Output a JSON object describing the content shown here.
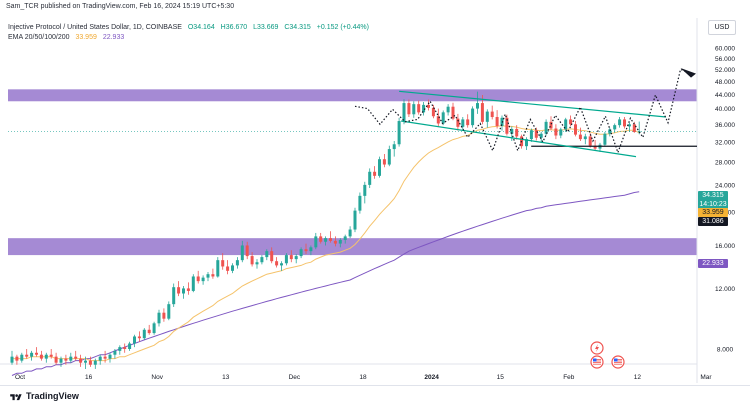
{
  "header": {
    "publisher": "Sam_TCR published on TradingView.com, Feb 16, 2024 15:19 UTC+5:30",
    "symbol_line": [
      "Injective Protocol / United States Dollar, 1D, COINBASE",
      "O34.164",
      "H36.670",
      "L33.669",
      "C34.315",
      "+0.152 (+0.44%)"
    ],
    "ema_line": [
      "EMA 20/50/100/200",
      "33.959",
      "22.933"
    ]
  },
  "currency": "USD",
  "footer": {
    "brand": "TradingView",
    "logo_icon": "tradingview-logo-icon"
  },
  "colors": {
    "up": "#26a69a",
    "down": "#ef5350",
    "ema20": "#f5c36b",
    "ema200": "#7e57c2",
    "zone": "#9575cd",
    "channel": "#00a98f",
    "tag_price": "#26a69a",
    "tag_ema20": "#f5b335",
    "tag_ema200": "#7e57c2"
  },
  "event_icons": [
    "lightning-icon",
    "us-flag-icon",
    "us-flag-icon"
  ],
  "chart_data": {
    "type": "candlestick",
    "x_tick_labels": [
      "Oct",
      "16",
      "Nov",
      "13",
      "Dec",
      "18",
      "2024",
      "15",
      "Feb",
      "12",
      "Mar"
    ],
    "y_tick_labels": [
      "60.000",
      "56.000",
      "52.000",
      "48.000",
      "44.000",
      "40.000",
      "36.000",
      "32.000",
      "28.000",
      "24.000",
      "20.000",
      "16.000",
      "12.000",
      "8.000"
    ],
    "y_scale": "log",
    "ylim": [
      6.5,
      64
    ],
    "price_labels": {
      "last": "34.315",
      "countdown": "14:10:23",
      "support": "31.086",
      "ema20": "33.959",
      "ema200": "22.933"
    },
    "candles": [
      [
        7.3,
        7.9,
        7.2,
        7.6
      ],
      [
        7.6,
        7.7,
        7.2,
        7.4
      ],
      [
        7.4,
        7.8,
        7.3,
        7.7
      ],
      [
        7.7,
        8.0,
        7.5,
        7.6
      ],
      [
        7.6,
        7.9,
        7.4,
        7.8
      ],
      [
        7.8,
        8.1,
        7.6,
        7.7
      ],
      [
        7.7,
        7.9,
        7.4,
        7.5
      ],
      [
        7.5,
        7.8,
        7.3,
        7.7
      ],
      [
        7.7,
        8.0,
        7.5,
        7.6
      ],
      [
        7.6,
        7.8,
        7.2,
        7.3
      ],
      [
        7.3,
        7.6,
        7.1,
        7.5
      ],
      [
        7.5,
        7.7,
        7.2,
        7.4
      ],
      [
        7.4,
        7.8,
        7.3,
        7.6
      ],
      [
        7.6,
        7.9,
        7.4,
        7.5
      ],
      [
        7.5,
        7.7,
        7.1,
        7.3
      ],
      [
        7.3,
        7.6,
        7.0,
        7.4
      ],
      [
        7.4,
        7.6,
        7.1,
        7.2
      ],
      [
        7.2,
        7.5,
        7.0,
        7.4
      ],
      [
        7.4,
        7.7,
        7.2,
        7.6
      ],
      [
        7.6,
        7.9,
        7.3,
        7.5
      ],
      [
        7.5,
        7.8,
        7.3,
        7.7
      ],
      [
        7.7,
        8.0,
        7.5,
        7.9
      ],
      [
        7.9,
        8.2,
        7.7,
        8.1
      ],
      [
        8.1,
        8.3,
        7.8,
        8.0
      ],
      [
        8.0,
        8.4,
        7.9,
        8.3
      ],
      [
        8.3,
        8.8,
        8.1,
        8.7
      ],
      [
        8.7,
        9.0,
        8.4,
        8.6
      ],
      [
        8.6,
        9.2,
        8.5,
        9.1
      ],
      [
        9.1,
        9.4,
        8.8,
        8.9
      ],
      [
        8.9,
        9.6,
        8.8,
        9.5
      ],
      [
        9.5,
        10.4,
        9.3,
        10.2
      ],
      [
        10.2,
        10.5,
        9.6,
        9.8
      ],
      [
        9.8,
        11.0,
        9.7,
        10.8
      ],
      [
        10.8,
        12.4,
        10.6,
        12.1
      ],
      [
        12.1,
        12.6,
        11.4,
        11.6
      ],
      [
        11.6,
        12.2,
        11.2,
        12.0
      ],
      [
        12.0,
        12.5,
        11.5,
        11.8
      ],
      [
        11.8,
        13.2,
        11.7,
        13.0
      ],
      [
        13.0,
        13.5,
        12.4,
        12.6
      ],
      [
        12.6,
        13.1,
        12.3,
        12.9
      ],
      [
        12.9,
        13.4,
        12.6,
        13.2
      ],
      [
        13.2,
        13.7,
        12.8,
        13.0
      ],
      [
        13.0,
        14.8,
        12.9,
        14.5
      ],
      [
        14.5,
        15.2,
        13.6,
        13.9
      ],
      [
        13.9,
        14.5,
        13.2,
        13.5
      ],
      [
        13.5,
        14.2,
        13.3,
        14.0
      ],
      [
        14.0,
        14.8,
        13.7,
        14.5
      ],
      [
        14.5,
        16.5,
        14.3,
        16.0
      ],
      [
        16.0,
        16.4,
        14.6,
        14.9
      ],
      [
        14.9,
        15.3,
        13.9,
        14.1
      ],
      [
        14.1,
        14.6,
        13.7,
        14.3
      ],
      [
        14.3,
        15.0,
        14.1,
        14.8
      ],
      [
        14.8,
        15.6,
        14.5,
        15.4
      ],
      [
        15.4,
        15.8,
        14.2,
        14.4
      ],
      [
        14.4,
        14.8,
        13.8,
        14.0
      ],
      [
        14.0,
        14.4,
        13.5,
        14.2
      ],
      [
        14.2,
        15.2,
        14.0,
        15.0
      ],
      [
        15.0,
        15.5,
        14.3,
        14.6
      ],
      [
        14.6,
        15.1,
        14.2,
        14.9
      ],
      [
        14.9,
        15.8,
        14.7,
        15.6
      ],
      [
        15.6,
        16.2,
        15.1,
        15.4
      ],
      [
        15.4,
        16.0,
        15.0,
        15.8
      ],
      [
        15.8,
        17.4,
        15.6,
        17.0
      ],
      [
        17.0,
        17.4,
        16.2,
        16.4
      ],
      [
        16.4,
        17.0,
        16.0,
        16.8
      ],
      [
        16.8,
        17.6,
        16.3,
        16.5
      ],
      [
        16.5,
        17.0,
        15.9,
        16.2
      ],
      [
        16.2,
        16.8,
        15.8,
        16.6
      ],
      [
        16.6,
        17.2,
        16.2,
        17.0
      ],
      [
        17.0,
        18.2,
        16.8,
        17.8
      ],
      [
        17.8,
        20.6,
        17.5,
        20.2
      ],
      [
        20.2,
        22.8,
        19.8,
        22.3
      ],
      [
        22.3,
        24.5,
        21.2,
        24.0
      ],
      [
        24.0,
        26.8,
        23.5,
        26.2
      ],
      [
        26.2,
        27.2,
        25.0,
        25.5
      ],
      [
        25.5,
        29.0,
        25.2,
        28.5
      ],
      [
        28.5,
        29.5,
        27.0,
        27.5
      ],
      [
        27.5,
        31.2,
        27.2,
        30.5
      ],
      [
        30.5,
        32.2,
        29.0,
        31.5
      ],
      [
        31.5,
        37.6,
        31.0,
        36.8
      ],
      [
        36.8,
        42.6,
        36.0,
        41.5
      ],
      [
        41.5,
        42.5,
        37.8,
        38.5
      ],
      [
        38.5,
        42.0,
        37.6,
        41.2
      ],
      [
        41.2,
        42.2,
        38.4,
        39.0
      ],
      [
        39.0,
        41.8,
        38.2,
        41.0
      ],
      [
        41.0,
        42.5,
        39.5,
        40.2
      ],
      [
        40.2,
        41.0,
        37.5,
        38.0
      ],
      [
        38.0,
        40.0,
        35.5,
        36.2
      ],
      [
        36.2,
        39.5,
        35.8,
        39.0
      ],
      [
        39.0,
        41.2,
        38.2,
        40.5
      ],
      [
        40.5,
        41.6,
        37.0,
        37.4
      ],
      [
        37.4,
        38.6,
        34.5,
        35.4
      ],
      [
        35.4,
        37.8,
        34.8,
        37.2
      ],
      [
        37.2,
        38.5,
        35.2,
        35.8
      ],
      [
        35.8,
        40.6,
        35.2,
        40.0
      ],
      [
        40.0,
        44.8,
        38.6,
        41.5
      ],
      [
        41.5,
        43.8,
        36.0,
        36.6
      ],
      [
        36.6,
        39.8,
        35.2,
        39.2
      ],
      [
        39.2,
        40.8,
        37.2,
        37.8
      ],
      [
        37.8,
        39.6,
        35.0,
        35.6
      ],
      [
        35.6,
        38.2,
        34.5,
        37.6
      ],
      [
        37.6,
        38.4,
        33.4,
        33.8
      ],
      [
        33.8,
        35.5,
        32.2,
        34.9
      ],
      [
        34.9,
        35.8,
        32.5,
        33.2
      ],
      [
        33.2,
        33.6,
        30.6,
        31.1
      ],
      [
        31.1,
        33.0,
        30.3,
        32.6
      ],
      [
        32.6,
        35.0,
        32.0,
        34.6
      ],
      [
        34.6,
        35.2,
        32.3,
        32.9
      ],
      [
        32.9,
        34.2,
        31.8,
        33.8
      ],
      [
        33.8,
        37.2,
        33.4,
        36.6
      ],
      [
        36.6,
        38.0,
        34.6,
        35.0
      ],
      [
        35.0,
        36.0,
        32.6,
        33.4
      ],
      [
        33.4,
        35.2,
        32.8,
        34.8
      ],
      [
        34.8,
        37.6,
        34.2,
        37.2
      ],
      [
        37.2,
        38.2,
        35.6,
        36.0
      ],
      [
        36.0,
        36.8,
        33.2,
        33.6
      ],
      [
        33.6,
        35.2,
        32.2,
        32.6
      ],
      [
        32.6,
        33.8,
        31.5,
        33.2
      ],
      [
        33.2,
        33.9,
        30.8,
        31.2
      ],
      [
        31.2,
        32.4,
        30.2,
        30.6
      ],
      [
        30.6,
        31.8,
        29.9,
        31.4
      ],
      [
        31.4,
        34.2,
        31.0,
        33.8
      ],
      [
        33.8,
        35.2,
        33.2,
        34.8
      ],
      [
        34.8,
        36.2,
        34.0,
        35.8
      ],
      [
        35.8,
        37.8,
        35.2,
        37.2
      ],
      [
        37.2,
        37.8,
        35.0,
        35.5
      ],
      [
        35.5,
        36.4,
        34.2,
        36.0
      ],
      [
        36.0,
        36.6,
        34.0,
        34.2
      ],
      [
        34.164,
        36.67,
        33.669,
        34.315
      ]
    ],
    "ema20": [
      7.5,
      7.5,
      7.5,
      7.5,
      7.6,
      7.6,
      7.6,
      7.6,
      7.6,
      7.5,
      7.5,
      7.5,
      7.5,
      7.5,
      7.5,
      7.5,
      7.4,
      7.4,
      7.4,
      7.4,
      7.5,
      7.5,
      7.6,
      7.6,
      7.7,
      7.8,
      7.9,
      8.0,
      8.1,
      8.2,
      8.4,
      8.5,
      8.7,
      9.0,
      9.2,
      9.4,
      9.6,
      9.9,
      10.1,
      10.3,
      10.5,
      10.7,
      11.0,
      11.2,
      11.4,
      11.6,
      11.9,
      12.2,
      12.4,
      12.6,
      12.8,
      13.0,
      13.2,
      13.3,
      13.4,
      13.5,
      13.7,
      13.8,
      13.9,
      14.0,
      14.2,
      14.3,
      14.6,
      14.8,
      15.0,
      15.1,
      15.2,
      15.3,
      15.5,
      15.7,
      16.1,
      16.7,
      17.4,
      18.2,
      18.9,
      19.7,
      20.4,
      21.1,
      21.9,
      23.1,
      24.6,
      25.8,
      27.0,
      28.0,
      28.9,
      29.7,
      30.3,
      30.8,
      31.4,
      32.0,
      32.5,
      32.8,
      33.2,
      33.4,
      34.0,
      34.6,
      34.8,
      35.2,
      35.4,
      35.5,
      35.7,
      35.5,
      35.5,
      35.3,
      35.0,
      34.8,
      34.8,
      34.6,
      34.5,
      34.7,
      34.7,
      34.6,
      34.6,
      34.8,
      34.9,
      34.8,
      34.6,
      34.5,
      34.2,
      33.9,
      33.7,
      33.7,
      33.8,
      34.0,
      34.3,
      34.4,
      34.6,
      34.6,
      33.959
    ],
    "ema200": [
      6.7,
      6.8,
      6.8,
      6.9,
      6.9,
      7.0,
      7.0,
      7.1,
      7.1,
      7.2,
      7.2,
      7.3,
      7.3,
      7.4,
      7.4,
      7.5,
      7.5,
      7.6,
      7.7,
      7.7,
      7.8,
      7.9,
      8.0,
      8.1,
      8.2,
      8.3,
      8.4,
      8.5,
      8.6,
      8.7,
      8.8,
      8.9,
      9.0,
      9.1,
      9.2,
      9.3,
      9.4,
      9.5,
      9.6,
      9.7,
      9.8,
      9.9,
      10.0,
      10.1,
      10.2,
      10.3,
      10.4,
      10.5,
      10.6,
      10.7,
      10.8,
      10.9,
      11.0,
      11.1,
      11.2,
      11.3,
      11.4,
      11.5,
      11.6,
      11.7,
      11.8,
      11.9,
      12.0,
      12.1,
      12.2,
      12.3,
      12.4,
      12.5,
      12.6,
      12.7,
      12.9,
      13.1,
      13.3,
      13.5,
      13.7,
      13.9,
      14.1,
      14.3,
      14.5,
      14.8,
      15.1,
      15.4,
      15.6,
      15.8,
      16.0,
      16.2,
      16.4,
      16.6,
      16.8,
      17.0,
      17.2,
      17.4,
      17.6,
      17.8,
      18.0,
      18.2,
      18.4,
      18.6,
      18.8,
      19.0,
      19.2,
      19.4,
      19.6,
      19.8,
      20.0,
      20.2,
      20.3,
      20.5,
      20.6,
      20.8,
      20.9,
      21.0,
      21.1,
      21.2,
      21.3,
      21.4,
      21.5,
      21.6,
      21.7,
      21.8,
      21.9,
      22.0,
      22.1,
      22.2,
      22.3,
      22.4,
      22.6,
      22.8,
      22.933
    ],
    "zones": [
      [
        42.0,
        45.5
      ],
      [
        15.0,
        16.8
      ]
    ],
    "support_level": 31.086,
    "channel": {
      "upper": [
        [
          0,
          44.9
        ],
        [
          77,
          37.8
        ]
      ],
      "lower": [
        [
          0,
          36.8
        ],
        [
          77,
          29.0
        ]
      ]
    },
    "projection": [
      [
        0,
        40.6
      ],
      [
        1,
        40.0
      ],
      [
        2,
        36.0
      ],
      [
        3,
        39.8
      ],
      [
        4,
        36.6
      ],
      [
        5,
        37.2
      ],
      [
        6,
        42.0
      ],
      [
        7,
        36.2
      ],
      [
        8,
        38.2
      ],
      [
        9,
        33.0
      ],
      [
        10,
        36.2
      ],
      [
        11,
        30.2
      ],
      [
        12,
        38.5
      ],
      [
        13,
        30.2
      ],
      [
        14,
        37.2
      ],
      [
        15,
        32.0
      ],
      [
        16,
        38.2
      ],
      [
        17,
        34.2
      ],
      [
        18,
        40.4
      ],
      [
        19,
        32.2
      ],
      [
        20,
        38.0
      ],
      [
        21,
        29.8
      ],
      [
        22,
        37.5
      ],
      [
        23,
        33.0
      ],
      [
        24,
        43.8
      ],
      [
        25,
        36.4
      ],
      [
        26,
        52.0
      ],
      [
        27,
        50.2
      ]
    ]
  }
}
